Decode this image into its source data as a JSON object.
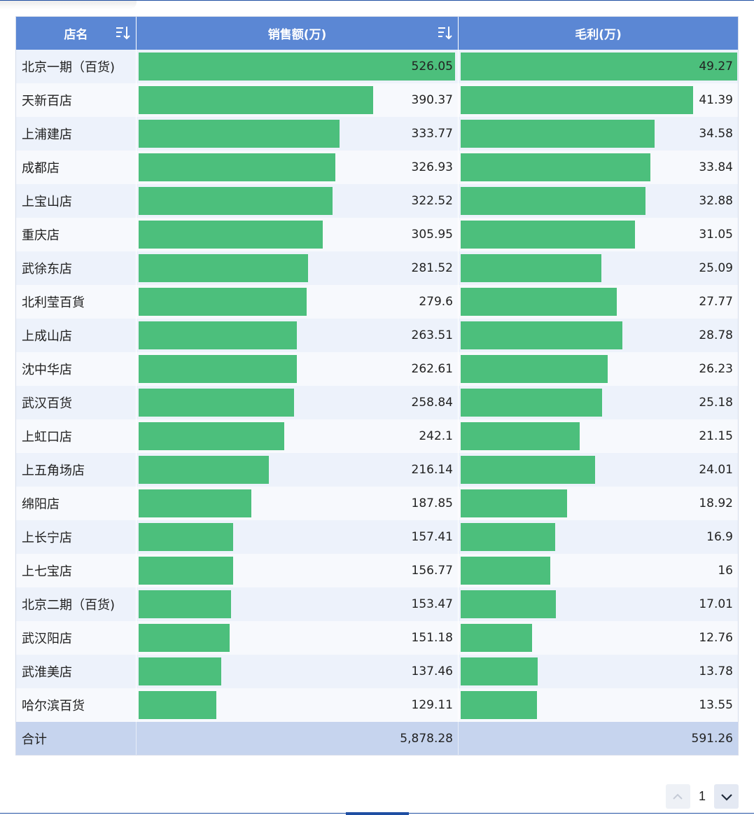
{
  "chart_data": {
    "type": "table",
    "columns": [
      "店名",
      "销售额(万)",
      "毛利(万)"
    ],
    "rows": [
      {
        "name": "北京一期（百货)",
        "sales": "526.05",
        "profit": "49.27"
      },
      {
        "name": "天新百店",
        "sales": "390.37",
        "profit": "41.39"
      },
      {
        "name": "上浦建店",
        "sales": "333.77",
        "profit": "34.58"
      },
      {
        "name": "成都店",
        "sales": "326.93",
        "profit": "33.84"
      },
      {
        "name": "上宝山店",
        "sales": "322.52",
        "profit": "32.88"
      },
      {
        "name": "重庆店",
        "sales": "305.95",
        "profit": "31.05"
      },
      {
        "name": "武徐东店",
        "sales": "281.52",
        "profit": "25.09"
      },
      {
        "name": "北利莹百貨",
        "sales": "279.6",
        "profit": "27.77"
      },
      {
        "name": "上成山店",
        "sales": "263.51",
        "profit": "28.78"
      },
      {
        "name": "沈中华店",
        "sales": "262.61",
        "profit": "26.23"
      },
      {
        "name": "武汉百货",
        "sales": "258.84",
        "profit": "25.18"
      },
      {
        "name": "上虹口店",
        "sales": "242.1",
        "profit": "21.15"
      },
      {
        "name": "上五角场店",
        "sales": "216.14",
        "profit": "24.01"
      },
      {
        "name": "绵阳店",
        "sales": "187.85",
        "profit": "18.92"
      },
      {
        "name": "上长宁店",
        "sales": "157.41",
        "profit": "16.9"
      },
      {
        "name": "上七宝店",
        "sales": "156.77",
        "profit": "16"
      },
      {
        "name": "北京二期（百货)",
        "sales": "153.47",
        "profit": "17.01"
      },
      {
        "name": "武汉阳店",
        "sales": "151.18",
        "profit": "12.76"
      },
      {
        "name": "武淮美店",
        "sales": "137.46",
        "profit": "13.78"
      },
      {
        "name": "哈尔滨百货",
        "sales": "129.11",
        "profit": "13.55"
      }
    ],
    "total": {
      "label": "合计",
      "sales": "5,878.28",
      "profit": "591.26"
    },
    "bar_max": {
      "sales": 526.05,
      "profit": 49.27
    }
  },
  "sort_icons": {
    "name": "sort-icon",
    "sales": "sort-icon"
  },
  "pagination": {
    "current_page": "1",
    "prev_icon": "chevron-up-icon",
    "next_icon": "chevron-down-icon"
  },
  "colors": {
    "header": "#5b87d4",
    "bar": "#4cbf7c",
    "total_row": "#c6d4ee",
    "row_alt": "#edf2fb"
  }
}
